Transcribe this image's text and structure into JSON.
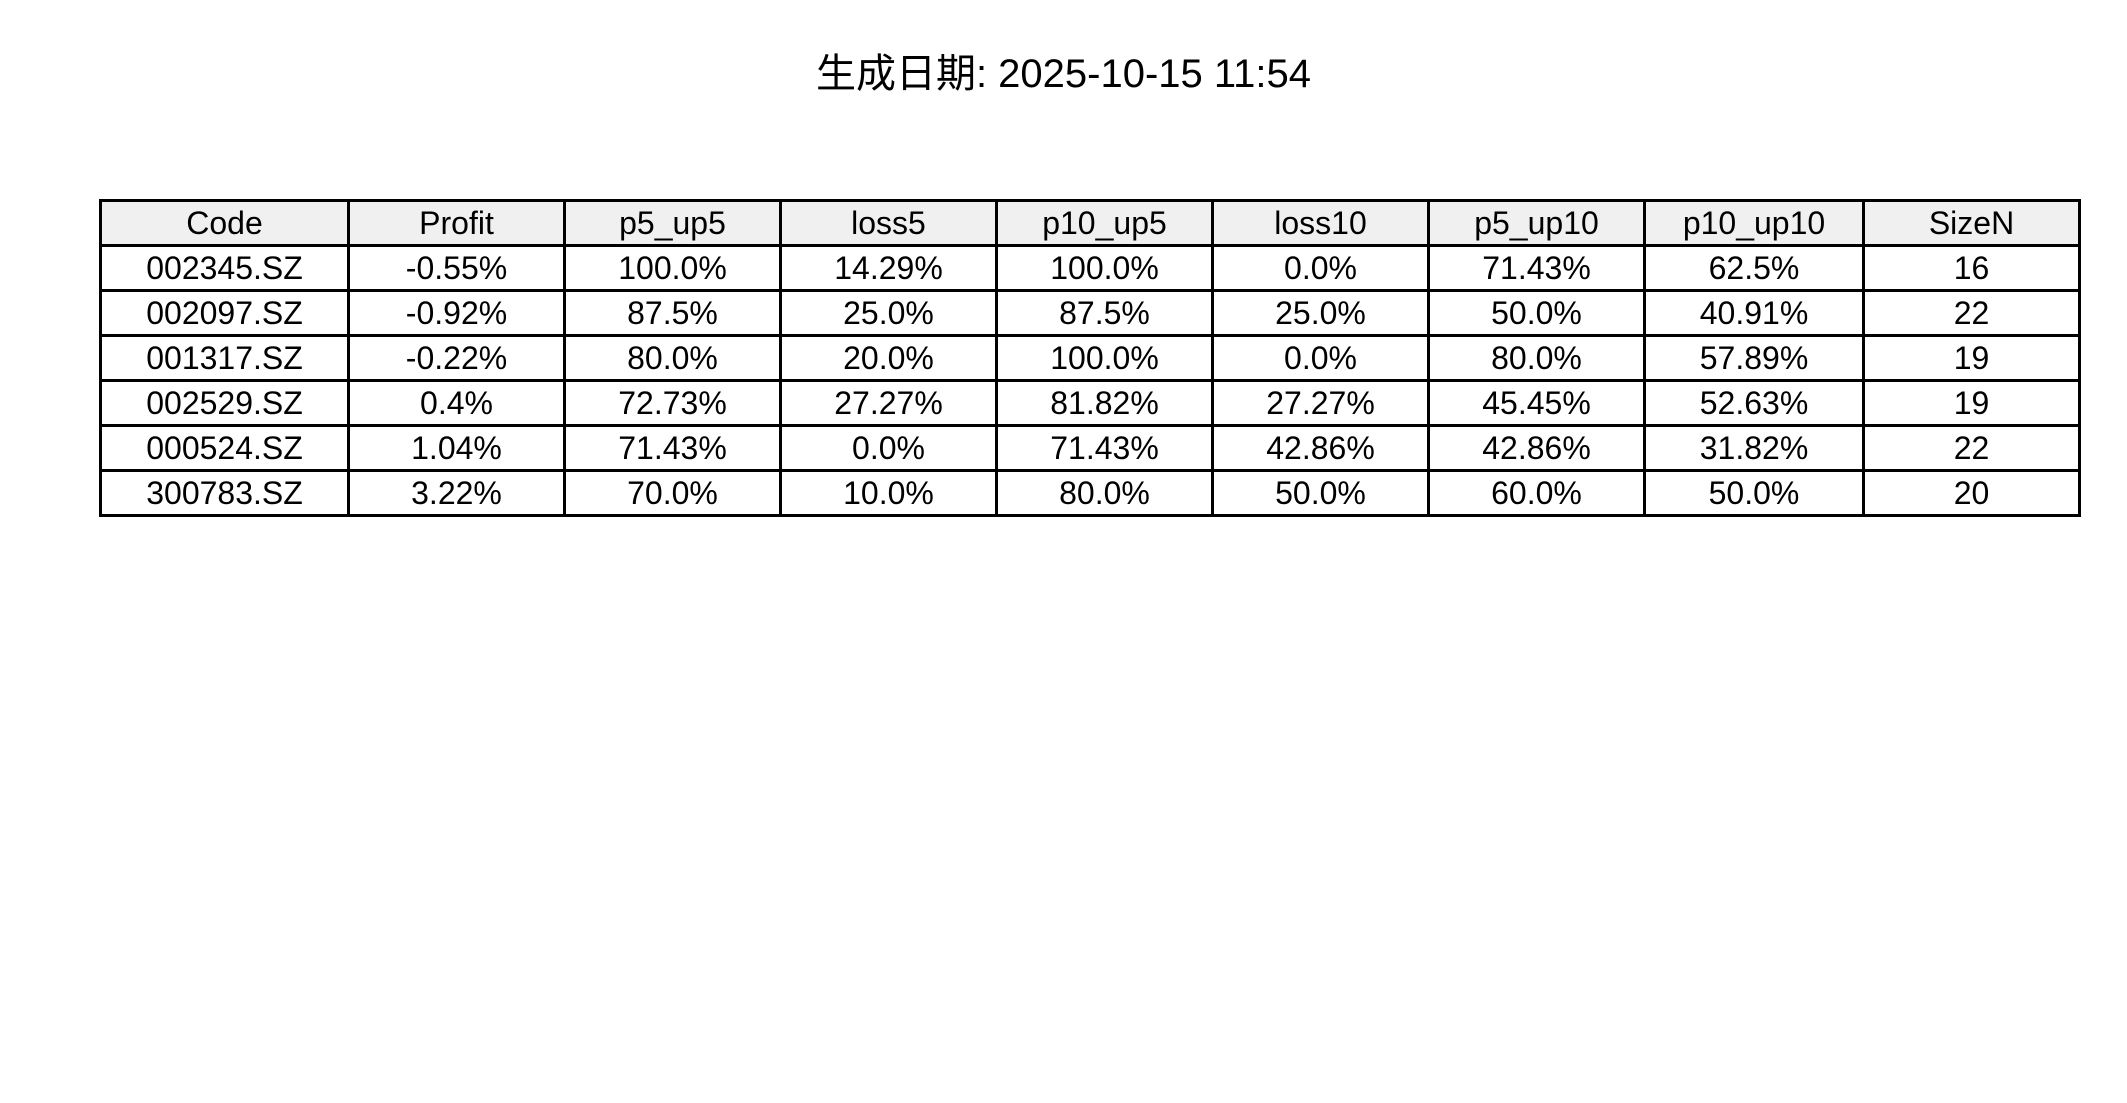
{
  "title": "生成日期: 2025-10-15 11:54",
  "colors": {
    "header_bg": "#f0f0f0",
    "border": "#000000",
    "text": "#000000"
  },
  "chart_data": {
    "type": "table",
    "title": "生成日期: 2025-10-15 11:54",
    "columns": [
      "Code",
      "Profit",
      "p5_up5",
      "loss5",
      "p10_up5",
      "loss10",
      "p5_up10",
      "p10_up10",
      "SizeN"
    ],
    "rows": [
      [
        "002345.SZ",
        "-0.55%",
        "100.0%",
        "14.29%",
        "100.0%",
        "0.0%",
        "71.43%",
        "62.5%",
        "16"
      ],
      [
        "002097.SZ",
        "-0.92%",
        "87.5%",
        "25.0%",
        "87.5%",
        "25.0%",
        "50.0%",
        "40.91%",
        "22"
      ],
      [
        "001317.SZ",
        "-0.22%",
        "80.0%",
        "20.0%",
        "100.0%",
        "0.0%",
        "80.0%",
        "57.89%",
        "19"
      ],
      [
        "002529.SZ",
        "0.4%",
        "72.73%",
        "27.27%",
        "81.82%",
        "27.27%",
        "45.45%",
        "52.63%",
        "19"
      ],
      [
        "000524.SZ",
        "1.04%",
        "71.43%",
        "0.0%",
        "71.43%",
        "42.86%",
        "42.86%",
        "31.82%",
        "22"
      ],
      [
        "300783.SZ",
        "3.22%",
        "70.0%",
        "10.0%",
        "80.0%",
        "50.0%",
        "60.0%",
        "50.0%",
        "20"
      ]
    ]
  }
}
